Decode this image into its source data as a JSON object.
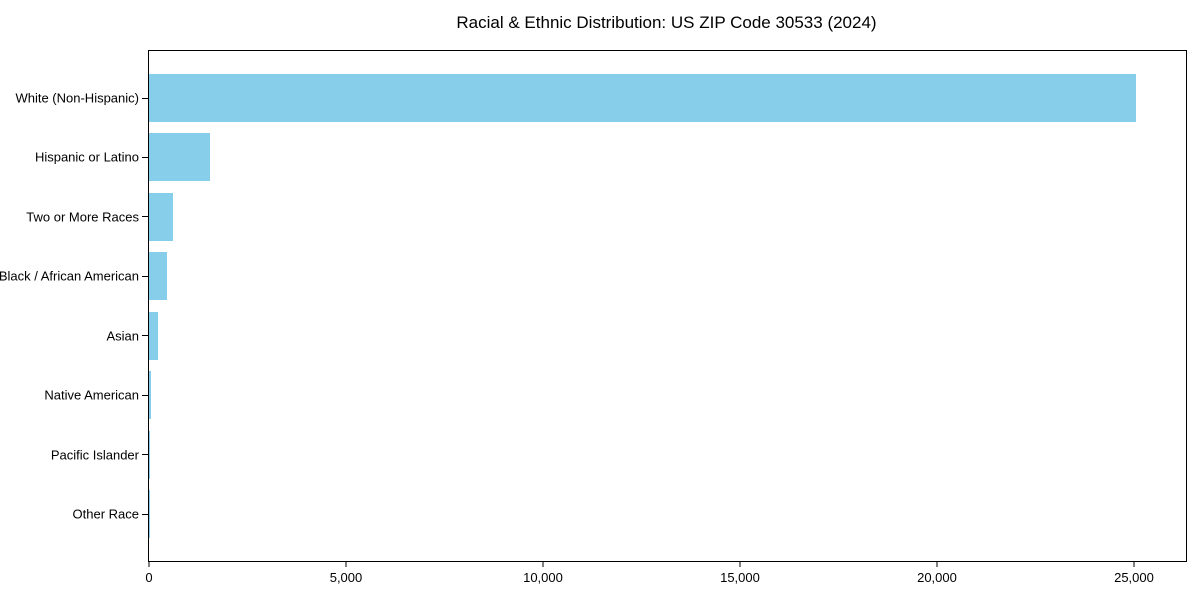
{
  "figure": {
    "background": "#ffffff",
    "spine_color": "#000000",
    "text_color": "#000000"
  },
  "chart_data": {
    "type": "bar",
    "orientation": "horizontal",
    "title": "Racial & Ethnic Distribution: US ZIP Code 30533 (2024)",
    "xlabel": "",
    "ylabel": "",
    "grid": false,
    "legend": false,
    "bar_color": "#87CEEB",
    "categories": [
      "White (Non-Hispanic)",
      "Hispanic or Latino",
      "Two or More Races",
      "Black / African American",
      "Asian",
      "Native American",
      "Pacific Islander",
      "Other Race"
    ],
    "values": [
      25050,
      1560,
      600,
      450,
      230,
      40,
      10,
      20
    ],
    "xlim": [
      0,
      26320
    ],
    "xticks": [
      {
        "value": 0,
        "label": "0"
      },
      {
        "value": 5000,
        "label": "5,000"
      },
      {
        "value": 10000,
        "label": "10,000"
      },
      {
        "value": 15000,
        "label": "15,000"
      },
      {
        "value": 20000,
        "label": "20,000"
      },
      {
        "value": 25000,
        "label": "25,000"
      }
    ]
  }
}
